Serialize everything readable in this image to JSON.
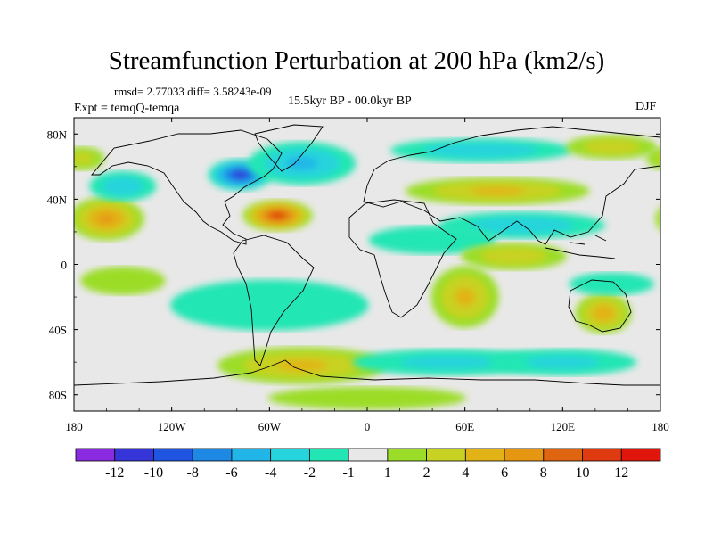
{
  "title": "Streamfunction Perturbation at 200 hPa (km2/s)",
  "stats": "rmsd= 2.77033  diff= 3.58243e-09",
  "experiment": "Expt = temqQ-temqa",
  "period": "15.5kyr BP - 00.0kyr BP",
  "season": "DJF",
  "map": {
    "lon_range": [
      -180,
      180
    ],
    "lat_range": [
      -90,
      90
    ],
    "lon_ticks": [
      {
        "value": -180,
        "label": "180"
      },
      {
        "value": -120,
        "label": "120W"
      },
      {
        "value": -60,
        "label": "60W"
      },
      {
        "value": 0,
        "label": "0"
      },
      {
        "value": 60,
        "label": "60E"
      },
      {
        "value": 120,
        "label": "120E"
      },
      {
        "value": 180,
        "label": "180"
      }
    ],
    "lat_ticks": [
      {
        "value": 80,
        "label": "80N"
      },
      {
        "value": 40,
        "label": "40N"
      },
      {
        "value": 0,
        "label": "0"
      },
      {
        "value": -40,
        "label": "40S"
      },
      {
        "value": -80,
        "label": "80S"
      }
    ],
    "anomalies": [
      {
        "lon": -78,
        "lat": 55,
        "value": -11,
        "rlon": 20,
        "rlat": 10
      },
      {
        "lon": -55,
        "lat": 30,
        "value": 11,
        "rlon": 22,
        "rlat": 10
      },
      {
        "lon": -160,
        "lat": 28,
        "value": 7,
        "rlon": 24,
        "rlat": 14
      },
      {
        "lon": -150,
        "lat": 48,
        "value": -4,
        "rlon": 22,
        "rlat": 10
      },
      {
        "lon": -40,
        "lat": 62,
        "value": -5,
        "rlon": 35,
        "rlat": 14
      },
      {
        "lon": 80,
        "lat": 45,
        "value": 5,
        "rlon": 60,
        "rlat": 9
      },
      {
        "lon": 70,
        "lat": 70,
        "value": -4,
        "rlon": 60,
        "rlat": 8
      },
      {
        "lon": 150,
        "lat": 72,
        "value": 4,
        "rlon": 30,
        "rlat": 8
      },
      {
        "lon": 95,
        "lat": 24,
        "value": -4,
        "rlon": 55,
        "rlat": 9
      },
      {
        "lon": 40,
        "lat": 15,
        "value": -2,
        "rlon": 45,
        "rlat": 10
      },
      {
        "lon": 90,
        "lat": 5,
        "value": 4,
        "rlon": 35,
        "rlat": 9
      },
      {
        "lon": 60,
        "lat": -20,
        "value": 5,
        "rlon": 22,
        "rlat": 20
      },
      {
        "lon": 145,
        "lat": -30,
        "value": 6,
        "rlon": 18,
        "rlat": 13
      },
      {
        "lon": 150,
        "lat": -12,
        "value": -2,
        "rlon": 30,
        "rlat": 8
      },
      {
        "lon": -150,
        "lat": -10,
        "value": 2,
        "rlon": 30,
        "rlat": 10
      },
      {
        "lon": -60,
        "lat": -25,
        "value": -2,
        "rlon": 70,
        "rlat": 18
      },
      {
        "lon": -40,
        "lat": -62,
        "value": 5,
        "rlon": 55,
        "rlat": 12
      },
      {
        "lon": 50,
        "lat": -60,
        "value": -3,
        "rlon": 65,
        "rlat": 9
      },
      {
        "lon": 120,
        "lat": -60,
        "value": -3,
        "rlon": 50,
        "rlat": 9
      },
      {
        "lon": 0,
        "lat": -82,
        "value": 2,
        "rlon": 70,
        "rlat": 8
      },
      {
        "lon": -175,
        "lat": 65,
        "value": 3,
        "rlon": 15,
        "rlat": 8
      }
    ]
  },
  "colorbar": {
    "levels": [
      "-12",
      "-10",
      "-8",
      "-6",
      "-4",
      "-2",
      "-1",
      "1",
      "2",
      "4",
      "6",
      "8",
      "10",
      "12"
    ],
    "colors": [
      "#8a2be2",
      "#3535d9",
      "#1f55e0",
      "#1e88e5",
      "#22b5e8",
      "#25d4dc",
      "#22e6b4",
      "#e8e8e8",
      "#9bdd28",
      "#c8d223",
      "#e2b316",
      "#e59712",
      "#e06510",
      "#e03a10",
      "#e0150c"
    ]
  }
}
